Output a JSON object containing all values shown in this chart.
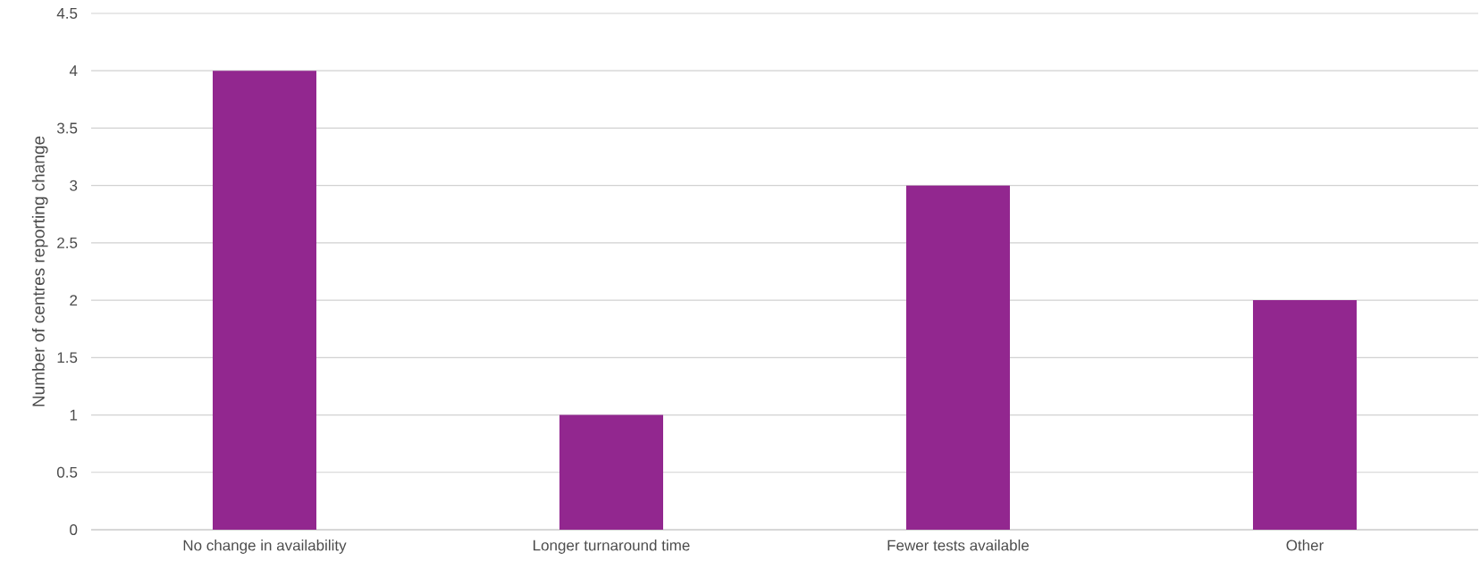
{
  "chart_data": {
    "type": "bar",
    "ylabel": "Number of centres reporting change",
    "categories": [
      "No change in availability",
      "Longer turnaround time",
      "Fewer tests available",
      "Other"
    ],
    "values": [
      4,
      1,
      3,
      2
    ],
    "color": "#92278f",
    "ylim": [
      0,
      4.5
    ],
    "yticks": [
      0,
      0.5,
      1,
      1.5,
      2,
      2.5,
      3,
      3.5,
      4,
      4.5
    ],
    "grid": "y"
  }
}
